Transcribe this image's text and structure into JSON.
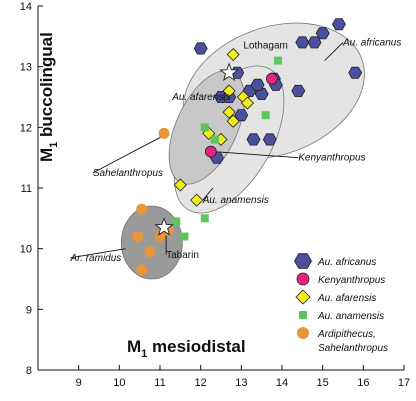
{
  "chart_data": {
    "type": "scatter",
    "xlabel": "M",
    "xlabel_sub": "1",
    "xlabel_rest": " mesiodistal",
    "ylabel": "M",
    "ylabel_sub": "1",
    "ylabel_rest": " buccolingual",
    "xlim": [
      8,
      17
    ],
    "ylim": [
      8,
      14
    ],
    "xticks": [
      "9",
      "10",
      "11",
      "12",
      "13",
      "14",
      "15",
      "16",
      "17"
    ],
    "yticks": [
      "8",
      "9",
      "10",
      "11",
      "12",
      "13",
      "14"
    ],
    "colors": {
      "africanus": "#4a4f9e",
      "kenyanthropus": "#e6247e",
      "afarensis": "#f2ee1c",
      "anamensis": "#5ec55a",
      "ardipithecus": "#e8953a",
      "ellipse_dark": "#9a9a9a",
      "ellipse_mid": "#c8c8c8",
      "ellipse_light": "#e4e4e4"
    },
    "series": [
      {
        "name": "Au. africanus",
        "marker": "hexagon",
        "color_key": "africanus",
        "points": [
          [
            12,
            13.3
          ],
          [
            12.4,
            11.5
          ],
          [
            12.5,
            12.5
          ],
          [
            12.7,
            12.5
          ],
          [
            12.9,
            12.9
          ],
          [
            13,
            12.2
          ],
          [
            13.2,
            12.6
          ],
          [
            13.5,
            12.55
          ],
          [
            13.3,
            11.8
          ],
          [
            13.7,
            11.8
          ],
          [
            13.4,
            12.7
          ],
          [
            13.8,
            12.8
          ],
          [
            13.85,
            12.7
          ],
          [
            14.4,
            12.6
          ],
          [
            14.5,
            13.4
          ],
          [
            14.8,
            13.4
          ],
          [
            15,
            13.55
          ],
          [
            15.4,
            13.7
          ],
          [
            15.8,
            12.9
          ]
        ]
      },
      {
        "name": "Kenyanthropus",
        "marker": "circle",
        "color_key": "kenyanthropus",
        "points": [
          [
            12.25,
            11.6
          ],
          [
            13.75,
            12.8
          ]
        ]
      },
      {
        "name": "Au. afarensis",
        "marker": "diamond",
        "color_key": "afarensis",
        "points": [
          [
            12.8,
            13.2
          ],
          [
            12.7,
            12.6
          ],
          [
            12.7,
            12.25
          ],
          [
            12.8,
            12.1
          ],
          [
            13.05,
            12.5
          ],
          [
            13.15,
            12.4
          ],
          [
            12.2,
            11.9
          ],
          [
            12.5,
            11.8
          ],
          [
            11.5,
            11.05
          ],
          [
            11.9,
            10.8
          ]
        ]
      },
      {
        "name": "Au. anamensis",
        "marker": "square",
        "color_key": "anamensis",
        "points": [
          [
            13.9,
            13.1
          ],
          [
            13.6,
            12.2
          ],
          [
            12.1,
            12
          ],
          [
            12.35,
            11.8
          ],
          [
            12.1,
            10.5
          ],
          [
            11.4,
            10.45
          ],
          [
            11.6,
            10.2
          ]
        ]
      },
      {
        "name": "Ardipithecus, Sahelanthropus",
        "marker": "circle",
        "color_key": "ardipithecus",
        "points": [
          [
            11.1,
            11.9
          ],
          [
            10.55,
            10.65
          ],
          [
            10.45,
            10.2
          ],
          [
            11,
            10.2
          ],
          [
            11.2,
            10.3
          ],
          [
            10.75,
            9.95
          ],
          [
            10.55,
            9.65
          ]
        ]
      }
    ],
    "stars": [
      {
        "label": "Lothagam",
        "x": 12.7,
        "y": 12.9
      },
      {
        "label": "Tabarin",
        "x": 11.1,
        "y": 10.35
      }
    ],
    "ellipses": [
      {
        "group": "Au. africanus",
        "cx": 13.8,
        "cy": 12.6,
        "rx": 2.3,
        "ry": 1.05,
        "angle_deg": -20,
        "fill_key": "ellipse_light"
      },
      {
        "group": "Au. anamensis",
        "cx": 12.7,
        "cy": 11.8,
        "rx": 2.0,
        "ry": 0.7,
        "angle_deg": -60,
        "fill_key": "ellipse_light"
      },
      {
        "group": "Au. afarensis",
        "cx": 12.15,
        "cy": 12.0,
        "rx": 1.5,
        "ry": 0.5,
        "angle_deg": -65,
        "fill_key": "ellipse_mid"
      },
      {
        "group": "Ardipithecus",
        "cx": 10.8,
        "cy": 10.1,
        "rx": 0.75,
        "ry": 0.6,
        "angle_deg": 0,
        "fill_key": "ellipse_dark"
      }
    ],
    "annotations": [
      {
        "text": "Au. africanus",
        "italic": true,
        "x": 15.5,
        "y": 13.35,
        "anchor": "start",
        "line_to": [
          15.05,
          13.1
        ]
      },
      {
        "text": "Lothagam",
        "italic": false,
        "x": 13.05,
        "y": 13.3,
        "anchor": "start",
        "line_to": null
      },
      {
        "text": "Au. afarensis",
        "italic": true,
        "x": 11.3,
        "y": 12.45,
        "anchor": "start",
        "line_to": null
      },
      {
        "text": "Kenyanthropus",
        "italic": true,
        "x": 14.4,
        "y": 11.45,
        "anchor": "start",
        "line_to": [
          12.3,
          11.6
        ]
      },
      {
        "text": "Sahelanthropus",
        "italic": true,
        "x": 9.35,
        "y": 11.2,
        "anchor": "start",
        "line_to": [
          11.05,
          11.85
        ]
      },
      {
        "text": "Au. anamensis",
        "italic": true,
        "x": 12.05,
        "y": 10.75,
        "anchor": "start",
        "line_to": [
          12.3,
          11.0
        ]
      },
      {
        "text": "Ar. ramidus",
        "italic": true,
        "x": 8.8,
        "y": 9.8,
        "anchor": "start",
        "line_to": [
          10.15,
          10.0
        ]
      },
      {
        "text": "Tabarin",
        "italic": false,
        "x": 11.15,
        "y": 9.85,
        "anchor": "start",
        "line_to": [
          11.15,
          10.3
        ]
      }
    ]
  },
  "legend": {
    "items": [
      "Au. africanus",
      "Kenyanthropus",
      "Au. afarensis",
      "Au. anamensis",
      "Ardipithecus,",
      "Sahelanthropus"
    ]
  }
}
